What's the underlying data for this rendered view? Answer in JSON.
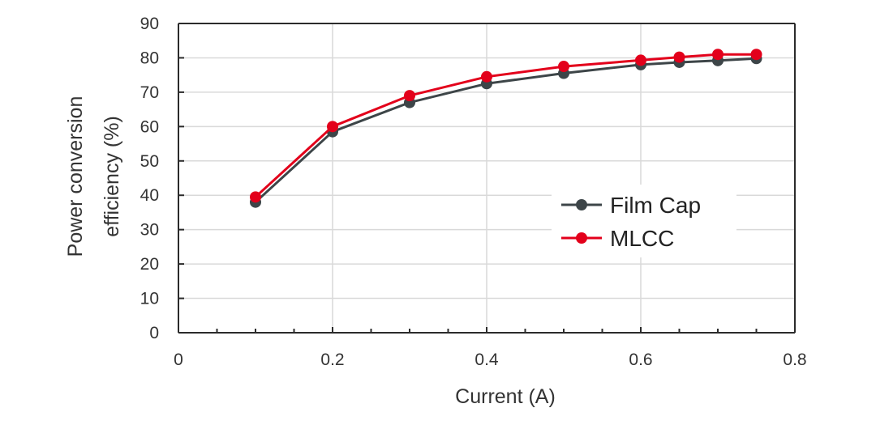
{
  "chart_data": {
    "type": "line",
    "title": "",
    "xlabel": "Current (A)",
    "ylabel_lines": [
      "Power conversion",
      "efficiency (%)"
    ],
    "xlim": [
      0,
      0.8
    ],
    "ylim": [
      0,
      90
    ],
    "xticks": [
      "0",
      "0.2",
      "0.4",
      "0.6",
      "0.8"
    ],
    "yticks": [
      "0",
      "10",
      "20",
      "30",
      "40",
      "50",
      "60",
      "70",
      "80",
      "90"
    ],
    "grid": true,
    "legend_position": "center-right",
    "series": [
      {
        "name": "Film Cap",
        "color": "#3d4548",
        "x": [
          0.1,
          0.2,
          0.3,
          0.4,
          0.5,
          0.6,
          0.65,
          0.7,
          0.75
        ],
        "values": [
          38,
          58.5,
          67,
          72.5,
          75.5,
          78,
          78.7,
          79.2,
          79.8
        ]
      },
      {
        "name": "MLCC",
        "color": "#e3001b",
        "x": [
          0.1,
          0.2,
          0.3,
          0.4,
          0.5,
          0.6,
          0.65,
          0.7,
          0.75
        ],
        "values": [
          39.5,
          60,
          69,
          74.5,
          77.5,
          79.3,
          80.2,
          81,
          81
        ]
      }
    ]
  }
}
